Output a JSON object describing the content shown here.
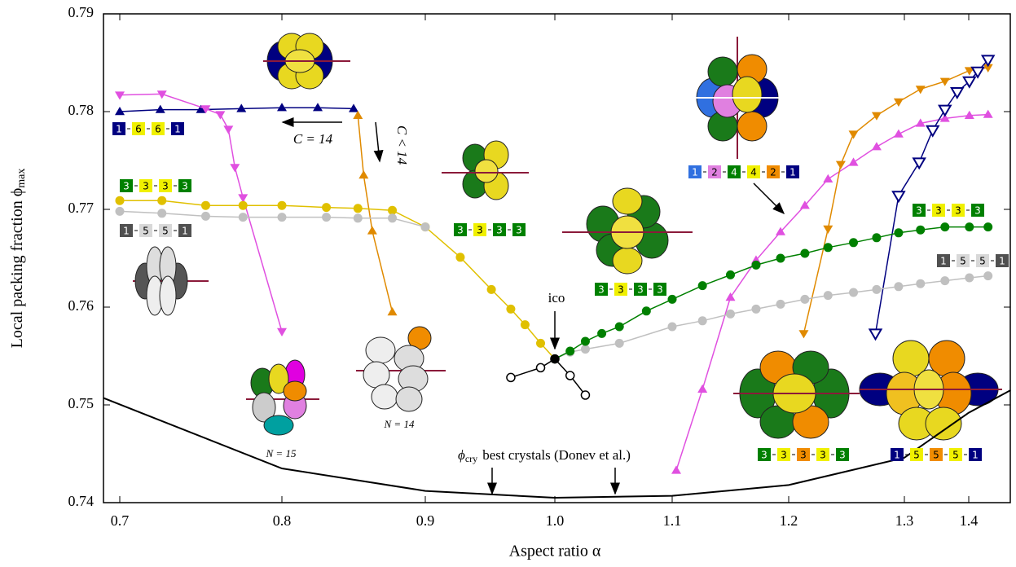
{
  "chart_data": {
    "type": "line",
    "x_label": "Aspect ratio α",
    "y_label": {
      "text": "Local packing fraction ϕ",
      "subscript": "max"
    },
    "xlim": [
      0.69,
      1.465
    ],
    "ylim": [
      0.74,
      0.79
    ],
    "xticks": [
      0.7,
      0.8,
      0.9,
      {
        "value": 1,
        "label": "1.0"
      },
      1.1,
      1.2,
      1.3,
      1.4
    ],
    "yticks": [
      0.74,
      0.75,
      0.76,
      0.77,
      0.78,
      0.79
    ],
    "series": [
      {
        "color": "#000080",
        "marker": "triangle-up",
        "x": [
          0.7,
          0.725,
          0.75,
          0.775,
          0.8,
          0.825,
          0.85
        ],
        "values": [
          0.78,
          0.7802,
          0.7802,
          0.7803,
          0.7804,
          0.7804,
          0.7803
        ]
      },
      {
        "color": "#e050e0",
        "marker": "triangle-down",
        "x": [
          0.7,
          0.726,
          0.753,
          0.762,
          0.767,
          0.771,
          0.776,
          0.8
        ],
        "values": [
          0.7817,
          0.7818,
          0.7803,
          0.7797,
          0.7782,
          0.7743,
          0.7712,
          0.7575
        ]
      },
      {
        "color": "#e050e0",
        "marker": "triangle-up",
        "x": [
          1.1035,
          1.126,
          1.15,
          1.172,
          1.193,
          1.214,
          1.234,
          1.256,
          1.276,
          1.295,
          1.325,
          1.363,
          1.401,
          1.43
        ],
        "values": [
          0.7433,
          0.7516,
          0.761,
          0.7648,
          0.7677,
          0.7704,
          0.7731,
          0.7748,
          0.7764,
          0.7777,
          0.7788,
          0.7793,
          0.7796,
          0.7797
        ]
      },
      {
        "color": "#e08a00",
        "marker": "triangle-up",
        "x": [
          0.853,
          0.857,
          0.863,
          0.877
        ],
        "values": [
          0.7796,
          0.7735,
          0.7678,
          0.7595
        ]
      },
      {
        "color": "#e08a00",
        "marker": "triangle-down",
        "x": [
          1.213,
          1.234,
          1.245,
          1.256,
          1.276,
          1.295,
          1.325,
          1.363,
          1.401,
          1.43
        ],
        "values": [
          0.7573,
          0.768,
          0.7746,
          0.7777,
          0.7796,
          0.781,
          0.7823,
          0.7831,
          0.7842,
          0.7845
        ]
      },
      {
        "color": "#000080",
        "marker": "triangle-down-open",
        "x": [
          1.275,
          1.295,
          1.323,
          1.344,
          1.363,
          1.382,
          1.401,
          1.414,
          1.43
        ],
        "values": [
          0.7573,
          0.7714,
          0.7748,
          0.7781,
          0.7802,
          0.782,
          0.7831,
          0.7841,
          0.7853
        ]
      },
      {
        "color": "#e0c000",
        "marker": "circle",
        "x": [
          0.7,
          0.726,
          0.753,
          0.776,
          0.8,
          0.831,
          0.853,
          0.877,
          0.9,
          0.927,
          0.951,
          0.966,
          0.977,
          0.989,
          1.0
        ],
        "values": [
          0.7709,
          0.7709,
          0.7704,
          0.7704,
          0.7704,
          0.7702,
          0.7701,
          0.7699,
          0.7682,
          0.7651,
          0.7618,
          0.7598,
          0.7582,
          0.7563,
          0.7547
        ]
      },
      {
        "color": "#c0c0c0",
        "marker": "circle",
        "x": [
          0.7,
          0.726,
          0.753,
          0.776,
          0.8,
          0.831,
          0.853,
          0.877,
          0.9
        ],
        "values": [
          0.7698,
          0.7696,
          0.7693,
          0.7692,
          0.7692,
          0.7692,
          0.7691,
          0.7691,
          0.7682
        ]
      },
      {
        "color": "#c0c0c0",
        "marker": "circle",
        "x": [
          1.0,
          1.013,
          1.026,
          1.055,
          1.1,
          1.126,
          1.15,
          1.172,
          1.193,
          1.214,
          1.234,
          1.256,
          1.276,
          1.295,
          1.325,
          1.363,
          1.401,
          1.43
        ],
        "values": [
          0.7547,
          0.7554,
          0.7557,
          0.7563,
          0.758,
          0.7586,
          0.7593,
          0.7598,
          0.7603,
          0.7608,
          0.7612,
          0.7615,
          0.7618,
          0.7621,
          0.7624,
          0.7627,
          0.763,
          0.7632
        ]
      },
      {
        "color": "#008000",
        "marker": "circle",
        "x": [
          1.0,
          1.013,
          1.026,
          1.04,
          1.055,
          1.078,
          1.1,
          1.126,
          1.15,
          1.172,
          1.193,
          1.214,
          1.234,
          1.256,
          1.276,
          1.295,
          1.325,
          1.363,
          1.401,
          1.43
        ],
        "values": [
          0.7547,
          0.7555,
          0.7565,
          0.7573,
          0.758,
          0.7596,
          0.7608,
          0.7622,
          0.7633,
          0.7643,
          0.765,
          0.7655,
          0.7661,
          0.7666,
          0.7671,
          0.7676,
          0.7679,
          0.7682,
          0.7682,
          0.7682
        ]
      },
      {
        "color": "#000000",
        "marker": "circle-open",
        "x": [
          0.966,
          0.989,
          1.0,
          1.013,
          1.026
        ],
        "values": [
          0.7528,
          0.7538,
          0.7547,
          0.753,
          0.751
        ]
      },
      {
        "color": "#000000",
        "marker": "none",
        "x": [
          0.69,
          0.8,
          0.9,
          1.0,
          1.1,
          1.2,
          1.3,
          1.4,
          1.465
        ],
        "values": [
          0.7507,
          0.7435,
          0.7412,
          0.7405,
          0.7407,
          0.7418,
          0.7446,
          0.7492,
          0.7515
        ]
      }
    ],
    "configurations": [
      [
        {
          "text": "1",
          "color": "#000080"
        },
        {
          "text": "6",
          "color": "#f0f000"
        },
        {
          "text": "6",
          "color": "#f0f000"
        },
        {
          "text": "1",
          "color": "#000080"
        }
      ],
      [
        {
          "text": "3",
          "color": "#008000"
        },
        {
          "text": "3",
          "color": "#f0f000"
        },
        {
          "text": "3",
          "color": "#f0f000"
        },
        {
          "text": "3",
          "color": "#008000"
        }
      ],
      [
        {
          "text": "1",
          "color": "#505050"
        },
        {
          "text": "5",
          "color": "#d8d8d8"
        },
        {
          "text": "5",
          "color": "#d8d8d8"
        },
        {
          "text": "1",
          "color": "#505050"
        }
      ],
      [
        {
          "text": "3",
          "color": "#008000"
        },
        {
          "text": "3",
          "color": "#f0f000"
        },
        {
          "text": "3",
          "color": "#008000"
        },
        {
          "text": "3",
          "color": "#008000"
        }
      ],
      [
        {
          "text": "3",
          "color": "#008000"
        },
        {
          "text": "3",
          "color": "#f0f000"
        },
        {
          "text": "3",
          "color": "#008000"
        },
        {
          "text": "3",
          "color": "#008000"
        }
      ],
      [
        {
          "text": "1",
          "color": "#3070e0"
        },
        {
          "text": "2",
          "color": "#e080e0"
        },
        {
          "text": "4",
          "color": "#008000"
        },
        {
          "text": "4",
          "color": "#f0f000"
        },
        {
          "text": "2",
          "color": "#f08c00"
        },
        {
          "text": "1",
          "color": "#000080"
        }
      ],
      [
        {
          "text": "3",
          "color": "#008000"
        },
        {
          "text": "3",
          "color": "#f0f000"
        },
        {
          "text": "3",
          "color": "#f0f000"
        },
        {
          "text": "3",
          "color": "#008000"
        }
      ],
      [
        {
          "text": "1",
          "color": "#505050"
        },
        {
          "text": "5",
          "color": "#d8d8d8"
        },
        {
          "text": "5",
          "color": "#d8d8d8"
        },
        {
          "text": "1",
          "color": "#505050"
        }
      ],
      [
        {
          "text": "3",
          "color": "#008000"
        },
        {
          "text": "3",
          "color": "#f0f000"
        },
        {
          "text": "3",
          "color": "#f08c00"
        },
        {
          "text": "3",
          "color": "#f0f000"
        },
        {
          "text": "3",
          "color": "#008000"
        }
      ],
      [
        {
          "text": "1",
          "color": "#000080"
        },
        {
          "text": "5",
          "color": "#f0f000"
        },
        {
          "text": "5",
          "color": "#f08c00"
        },
        {
          "text": "5",
          "color": "#f0f000"
        },
        {
          "text": "1",
          "color": "#000080"
        }
      ]
    ],
    "annotations": {
      "c14": "C = 14",
      "clt14": "C < 14",
      "ico": "ico",
      "n15": "N = 15",
      "n14": "N = 14",
      "crystal": {
        "symbol": "ϕ",
        "subscript": "cry",
        "text": "best crystals (Donev et al.)"
      }
    }
  }
}
